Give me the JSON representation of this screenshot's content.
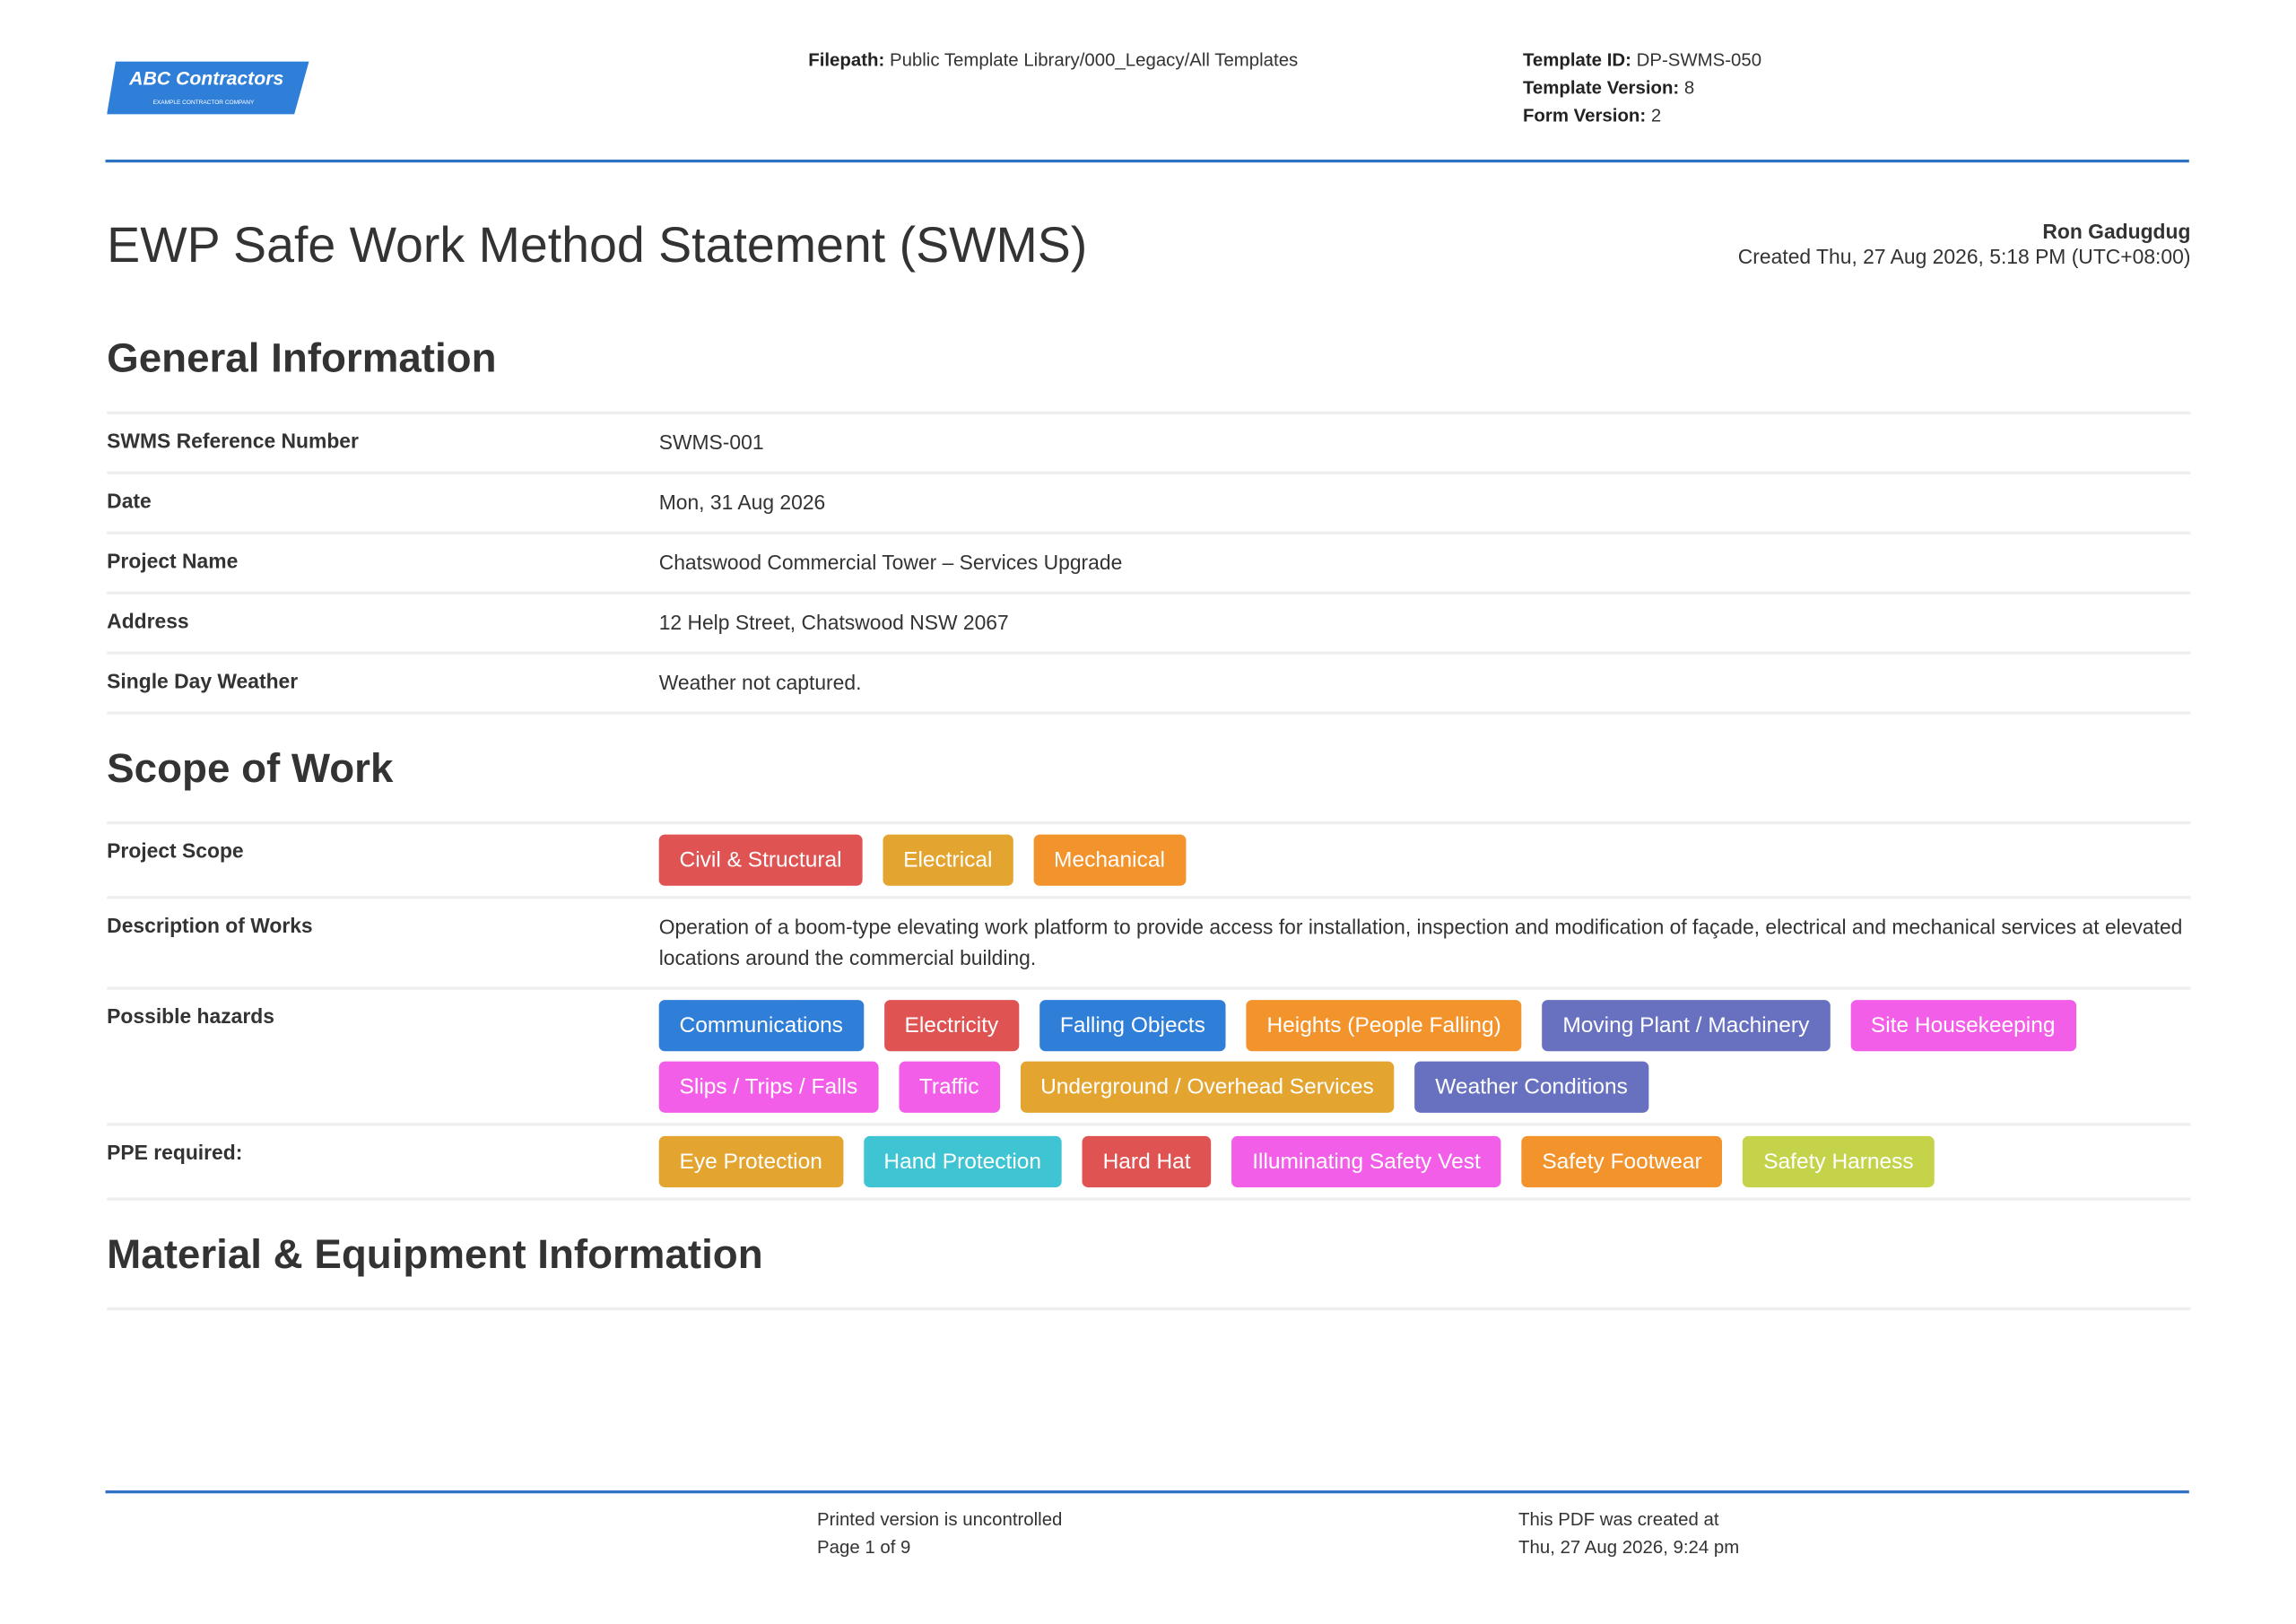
{
  "header": {
    "logo": {
      "name": "ABC Contractors",
      "tagline": "EXAMPLE CONTRACTOR COMPANY"
    },
    "filepath": {
      "label": "Filepath:",
      "value": "Public Template Library/000_Legacy/All Templates"
    },
    "template_info": [
      {
        "label": "Template ID:",
        "value": "DP-SWMS-050"
      },
      {
        "label": "Template Version:",
        "value": "8"
      },
      {
        "label": "Form Version:",
        "value": "2"
      }
    ]
  },
  "document": {
    "title": "EWP Safe Work Method Statement (SWMS)",
    "author": "Ron Gadugdug",
    "created": "Created Thu, 27 Aug 2026, 5:18 PM (UTC+08:00)"
  },
  "sections": [
    {
      "title": "General Information",
      "rows": [
        {
          "label": "SWMS Reference Number",
          "value": "SWMS-001"
        },
        {
          "label": "Date",
          "value": "Mon, 31 Aug 2026"
        },
        {
          "label": "Project Name",
          "value": "Chatswood Commercial Tower – Services Upgrade"
        },
        {
          "label": "Address",
          "value": "12 Help Street, Chatswood NSW 2067"
        },
        {
          "label": "Single Day Weather",
          "value": "Weather not captured."
        }
      ]
    },
    {
      "title": "Scope of Work",
      "rows": [
        {
          "label": "Project Scope",
          "tags": [
            {
              "label": "Civil & Structural",
              "color": "#e05353"
            },
            {
              "label": "Electrical",
              "color": "#e3a530"
            },
            {
              "label": "Mechanical",
              "color": "#f3932c"
            }
          ]
        },
        {
          "label": "Description of Works",
          "value": "Operation of a boom-type elevating work platform to provide access for installation, inspection and modification of façade, electrical and mechanical services at elevated locations around the commercial building."
        },
        {
          "label": "Possible hazards",
          "tags": [
            {
              "label": "Communications",
              "color": "#2f7fd9"
            },
            {
              "label": "Electricity",
              "color": "#e05353"
            },
            {
              "label": "Falling Objects",
              "color": "#2f7fd9"
            },
            {
              "label": "Heights (People Falling)",
              "color": "#f3932c"
            },
            {
              "label": "Moving Plant / Machinery",
              "color": "#6771c0"
            },
            {
              "label": "Site Housekeeping",
              "color": "#f35ee8"
            },
            {
              "label": "Slips / Trips / Falls",
              "color": "#f35ee8"
            },
            {
              "label": "Traffic",
              "color": "#f35ee8"
            },
            {
              "label": "Underground / Overhead Services",
              "color": "#e3a530"
            },
            {
              "label": "Weather Conditions",
              "color": "#6771c0"
            }
          ]
        },
        {
          "label": "PPE required:",
          "tags": [
            {
              "label": "Eye Protection",
              "color": "#e3a530"
            },
            {
              "label": "Hand Protection",
              "color": "#3fc4d3"
            },
            {
              "label": "Hard Hat",
              "color": "#e05353"
            },
            {
              "label": "Illuminating Safety Vest",
              "color": "#f35ee8"
            },
            {
              "label": "Safety Footwear",
              "color": "#f3932c"
            },
            {
              "label": "Safety Harness",
              "color": "#c4d34a"
            }
          ]
        }
      ]
    },
    {
      "title": "Material & Equipment Information"
    }
  ],
  "footer": {
    "notice": "Printed version is uncontrolled",
    "page": "Page 1 of 9",
    "created_label": "This PDF was created at",
    "created_at": "Thu, 27 Aug 2026, 9:24 pm"
  }
}
